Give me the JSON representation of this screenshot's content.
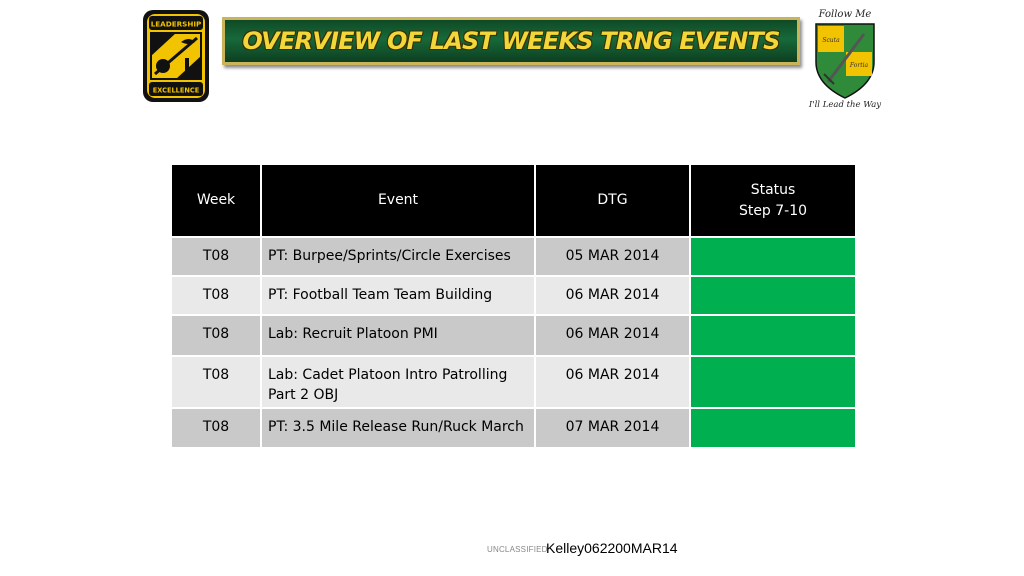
{
  "header": {
    "title": "OVERVIEW OF LAST WEEKS TRNG EVENTS",
    "left_logo": {
      "top_text": "LEADERSHIP",
      "bottom_text": "EXCELLENCE",
      "colors": {
        "field": "#f2c300",
        "border": "#111111"
      }
    },
    "right_logo": {
      "top_text": "Follow Me",
      "bottom_text": "I'll Lead the Way",
      "left_word": "Scuta",
      "right_word": "Fortia",
      "colors": {
        "shield_green": "#2f8a3a",
        "shield_gold": "#f2c300"
      }
    }
  },
  "table": {
    "headers": {
      "week": "Week",
      "event": "Event",
      "dtg": "DTG",
      "status_line1": "Status",
      "status_line2": "Step 7-10"
    },
    "rows": [
      {
        "week": "T08",
        "event": "PT: Burpee/Sprints/Circle Exercises",
        "dtg": "05 MAR 2014",
        "status": "green"
      },
      {
        "week": "T08",
        "event": "PT: Football Team Team Building",
        "dtg": "06 MAR 2014",
        "status": "green"
      },
      {
        "week": "T08",
        "event": "Lab: Recruit Platoon PMI",
        "dtg": "06 MAR 2014",
        "status": "green"
      },
      {
        "week": "T08",
        "event": "Lab: Cadet Platoon Intro Patrolling Part 2 OBJ",
        "dtg": "06 MAR 2014",
        "status": "green"
      },
      {
        "week": "T08",
        "event": "PT: 3.5 Mile Release Run/Ruck March",
        "dtg": "07 MAR 2014",
        "status": "green"
      }
    ],
    "colors": {
      "header_bg": "#000000",
      "row_dark": "#c9c9c9",
      "row_light": "#e9e9e9",
      "status_green": "#00b050"
    }
  },
  "footer": {
    "classification": "UNCLASSIFIED",
    "document_id": "Kelley062200MAR14"
  }
}
